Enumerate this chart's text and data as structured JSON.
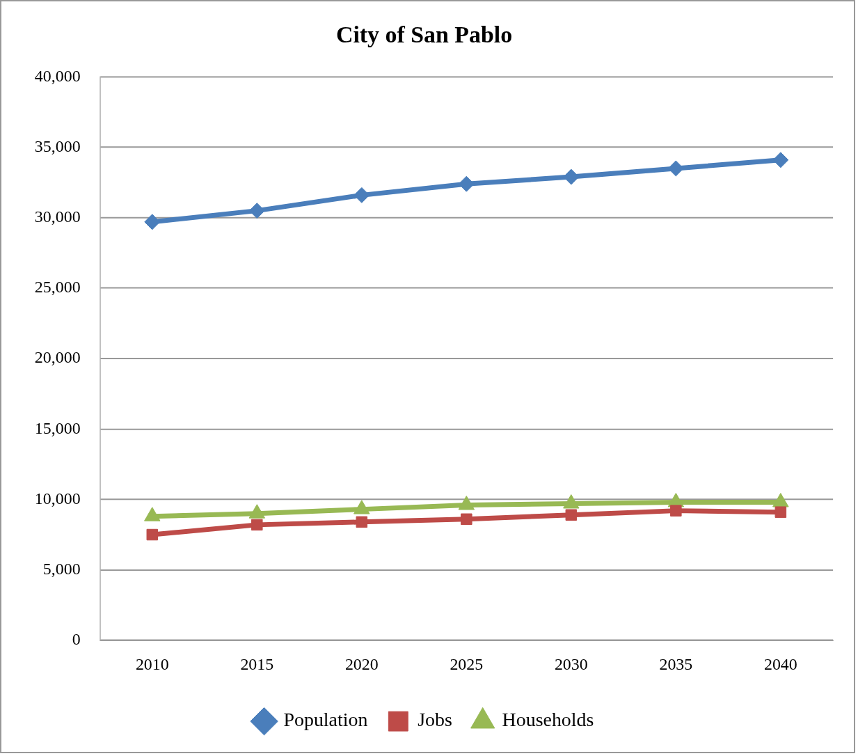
{
  "chart_data": {
    "type": "line",
    "title": "City of San Pablo",
    "categories": [
      "2010",
      "2015",
      "2020",
      "2025",
      "2030",
      "2035",
      "2040"
    ],
    "series": [
      {
        "name": "Population",
        "color": "#4a7ebb",
        "marker": "diamond",
        "values": [
          29700,
          30500,
          31600,
          32400,
          32900,
          33500,
          34100
        ]
      },
      {
        "name": "Jobs",
        "color": "#be4b48",
        "marker": "square",
        "values": [
          7500,
          8200,
          8400,
          8600,
          8900,
          9200,
          9100
        ]
      },
      {
        "name": "Households",
        "color": "#98b954",
        "marker": "triangle",
        "values": [
          8800,
          9000,
          9300,
          9600,
          9700,
          9800,
          9800
        ]
      }
    ],
    "ylim": [
      0,
      40000
    ],
    "yticks": [
      {
        "value": 0,
        "label": "0"
      },
      {
        "value": 5000,
        "label": "5,000"
      },
      {
        "value": 10000,
        "label": "10,000"
      },
      {
        "value": 15000,
        "label": "15,000"
      },
      {
        "value": 20000,
        "label": "20,000"
      },
      {
        "value": 25000,
        "label": "25,000"
      },
      {
        "value": 30000,
        "label": "30,000"
      },
      {
        "value": 35000,
        "label": "35,000"
      },
      {
        "value": 40000,
        "label": "40,000"
      }
    ],
    "grid": "y",
    "legend": "bottom",
    "line_style": "solid"
  }
}
